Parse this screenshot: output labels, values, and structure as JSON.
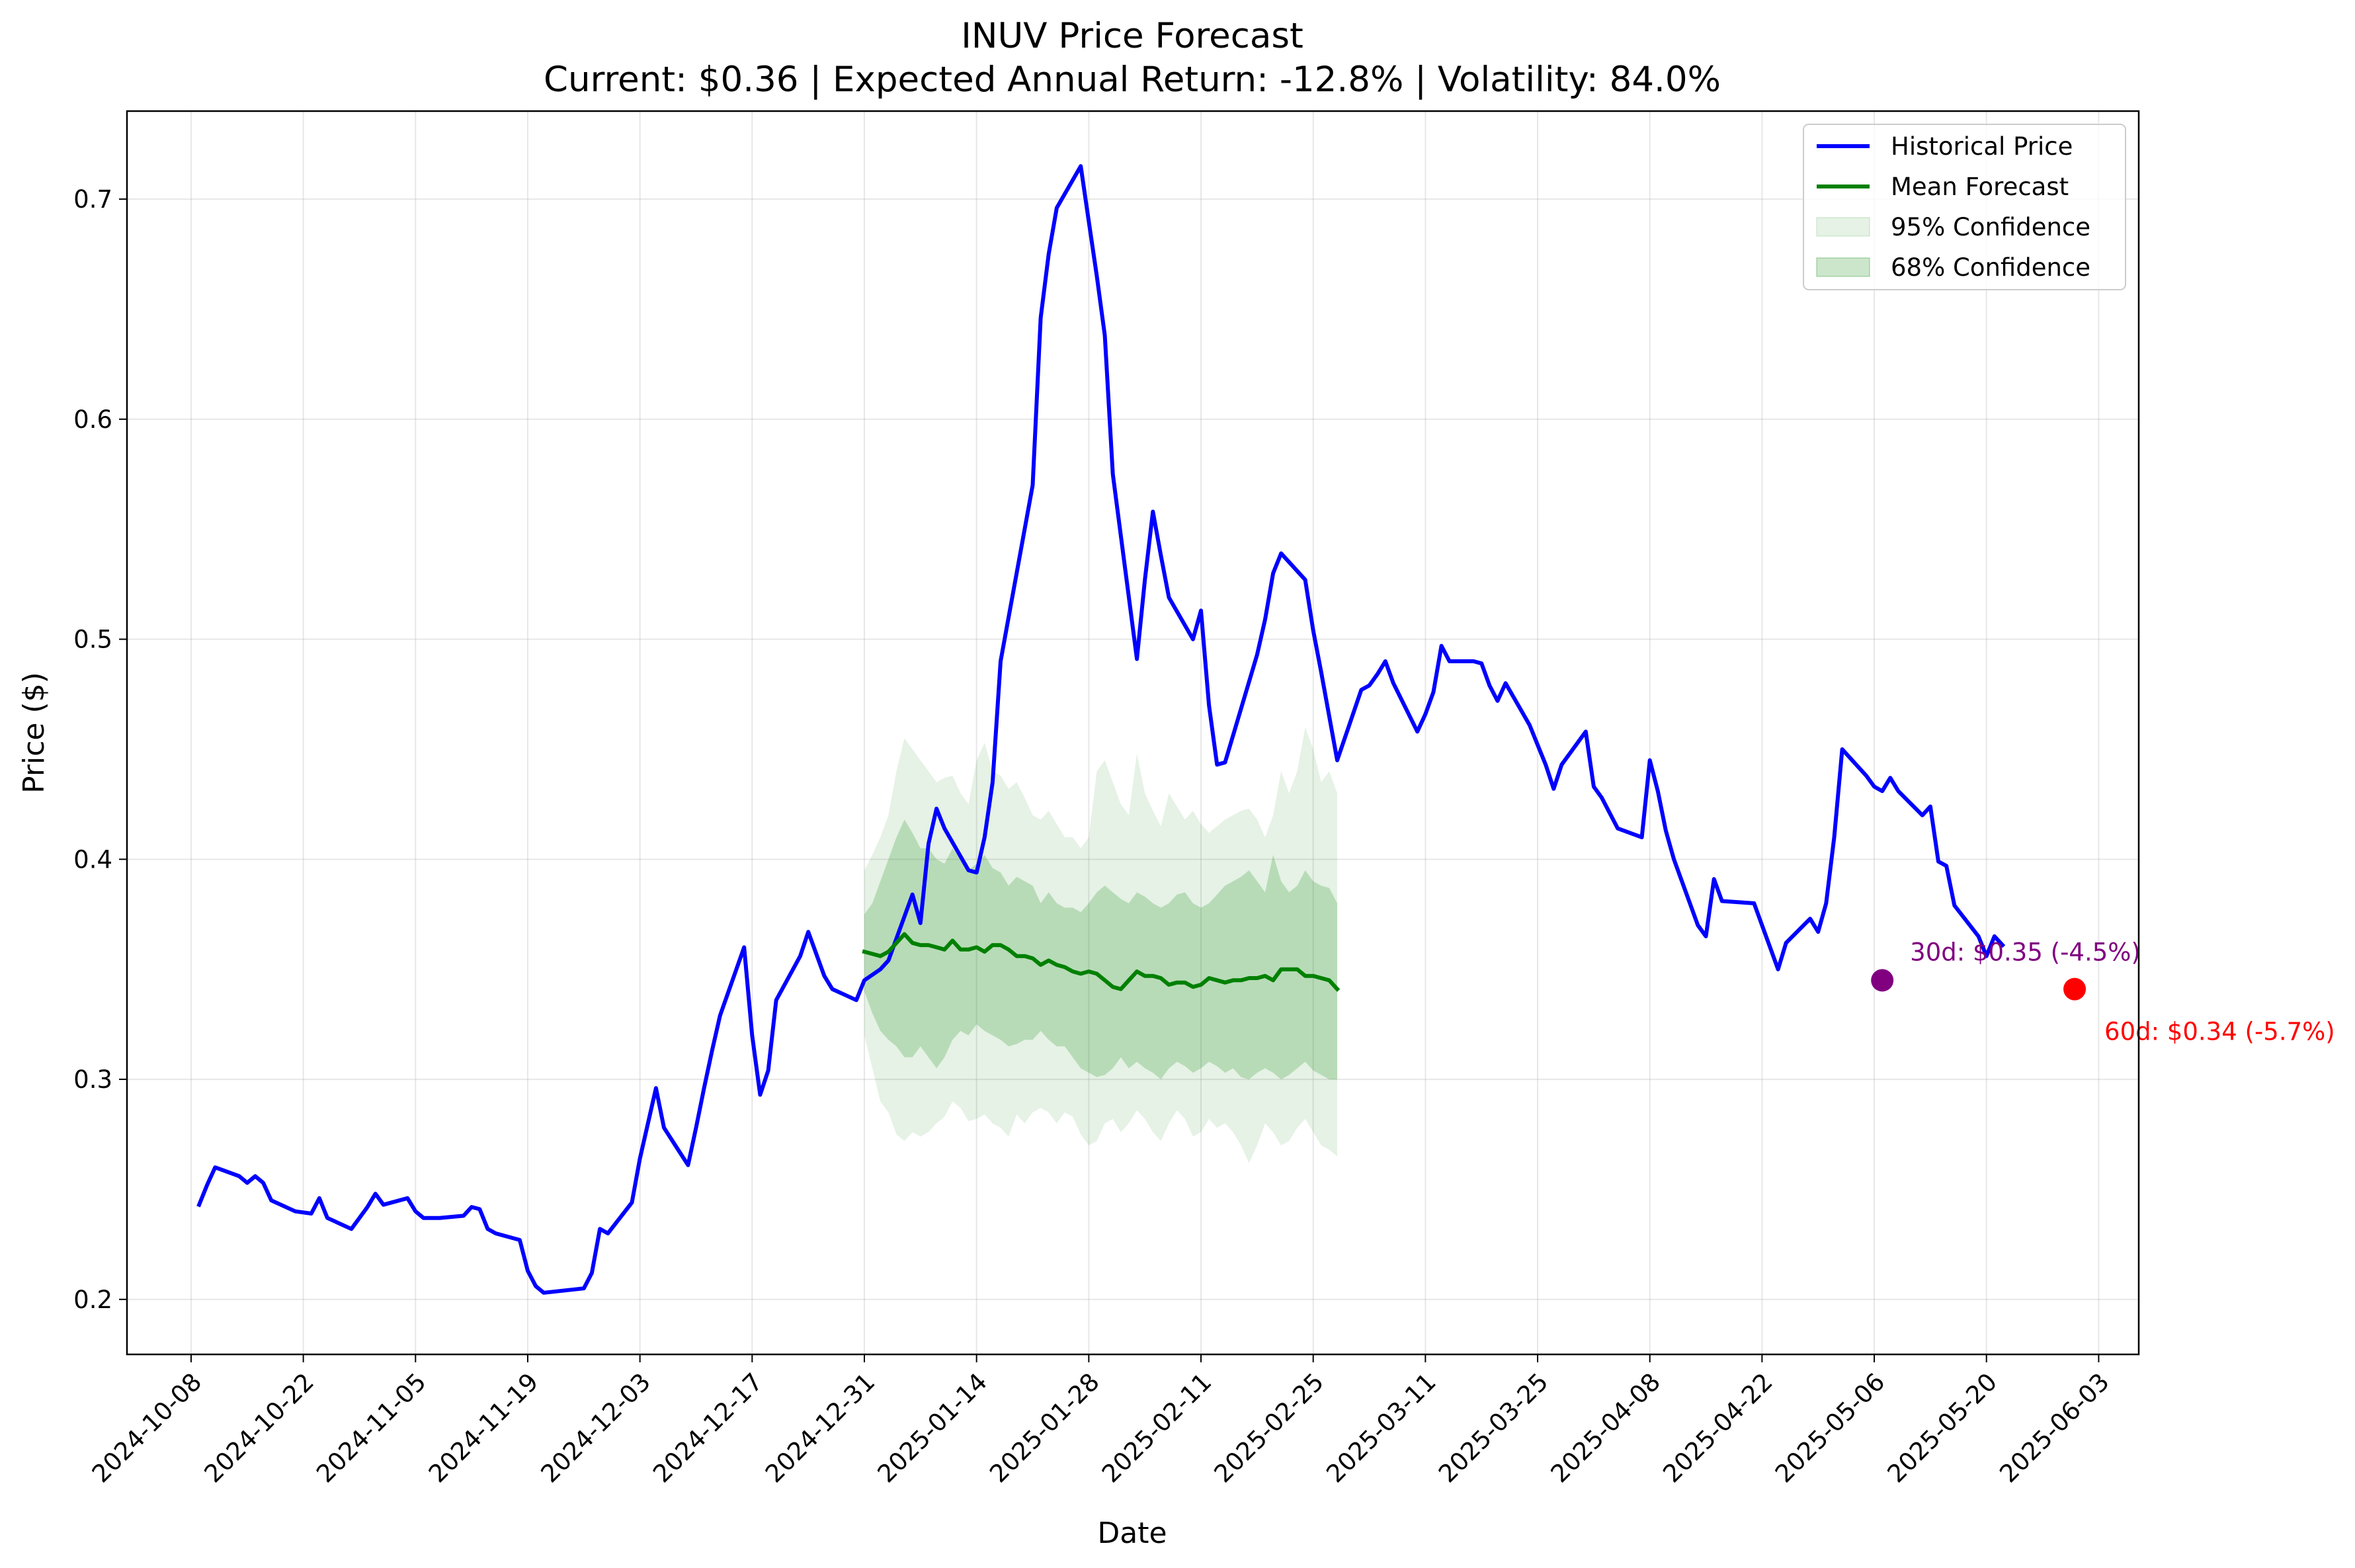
{
  "chart_data": {
    "type": "line",
    "title": "INUV Price Forecast",
    "subtitle": "Current: $0.36 | Expected Annual Return: -12.8% | Volatility: 84.0%",
    "xlabel": "Date",
    "ylabel": "Price ($)",
    "xlim": [
      "2024-09-30",
      "2025-06-08"
    ],
    "ylim": [
      0.175,
      0.74
    ],
    "grid": true,
    "legend_position": "top-right",
    "x_ticks": [
      "2024-10-08",
      "2024-10-22",
      "2024-11-05",
      "2024-11-19",
      "2024-12-03",
      "2024-12-17",
      "2024-12-31",
      "2025-01-14",
      "2025-01-28",
      "2025-02-11",
      "2025-02-25",
      "2025-03-11",
      "2025-03-25",
      "2025-04-08",
      "2025-04-22",
      "2025-05-06",
      "2025-05-20",
      "2025-06-03"
    ],
    "y_ticks": [
      "0.2",
      "0.3",
      "0.4",
      "0.5",
      "0.6",
      "0.7"
    ],
    "colors": {
      "historical": "#0000ff",
      "forecast": "#008000",
      "band": "#008000",
      "marker_30d": "#800080",
      "marker_60d": "#ff0000"
    },
    "series": [
      {
        "name": "Historical Price",
        "points": [
          [
            "2024-10-09",
            0.243
          ],
          [
            "2024-10-10",
            0.252
          ],
          [
            "2024-10-11",
            0.26
          ],
          [
            "2024-10-14",
            0.256
          ],
          [
            "2024-10-15",
            0.253
          ],
          [
            "2024-10-16",
            0.256
          ],
          [
            "2024-10-17",
            0.253
          ],
          [
            "2024-10-18",
            0.245
          ],
          [
            "2024-10-21",
            0.24
          ],
          [
            "2024-10-23",
            0.239
          ],
          [
            "2024-10-24",
            0.246
          ],
          [
            "2024-10-25",
            0.237
          ],
          [
            "2024-10-28",
            0.232
          ],
          [
            "2024-10-29",
            0.237
          ],
          [
            "2024-10-30",
            0.242
          ],
          [
            "2024-10-31",
            0.248
          ],
          [
            "2024-11-01",
            0.243
          ],
          [
            "2024-11-04",
            0.246
          ],
          [
            "2024-11-05",
            0.24
          ],
          [
            "2024-11-06",
            0.237
          ],
          [
            "2024-11-08",
            0.237
          ],
          [
            "2024-11-11",
            0.238
          ],
          [
            "2024-11-12",
            0.242
          ],
          [
            "2024-11-13",
            0.241
          ],
          [
            "2024-11-14",
            0.232
          ],
          [
            "2024-11-15",
            0.23
          ],
          [
            "2024-11-18",
            0.227
          ],
          [
            "2024-11-19",
            0.213
          ],
          [
            "2024-11-20",
            0.206
          ],
          [
            "2024-11-21",
            0.203
          ],
          [
            "2024-11-26",
            0.205
          ],
          [
            "2024-11-27",
            0.212
          ],
          [
            "2024-11-28",
            0.232
          ],
          [
            "2024-11-29",
            0.23
          ],
          [
            "2024-12-02",
            0.244
          ],
          [
            "2024-12-03",
            0.264
          ],
          [
            "2024-12-04",
            0.28
          ],
          [
            "2024-12-05",
            0.296
          ],
          [
            "2024-12-06",
            0.278
          ],
          [
            "2024-12-09",
            0.261
          ],
          [
            "2024-12-10",
            0.278
          ],
          [
            "2024-12-11",
            0.296
          ],
          [
            "2024-12-12",
            0.313
          ],
          [
            "2024-12-13",
            0.329
          ],
          [
            "2024-12-16",
            0.36
          ],
          [
            "2024-12-17",
            0.32
          ],
          [
            "2024-12-18",
            0.293
          ],
          [
            "2024-12-19",
            0.304
          ],
          [
            "2024-12-20",
            0.336
          ],
          [
            "2024-12-23",
            0.356
          ],
          [
            "2024-12-24",
            0.367
          ],
          [
            "2024-12-26",
            0.347
          ],
          [
            "2024-12-27",
            0.341
          ],
          [
            "2024-12-30",
            0.336
          ],
          [
            "2024-12-31",
            0.345
          ],
          [
            "2025-01-02",
            0.35
          ],
          [
            "2025-01-03",
            0.354
          ],
          [
            "2025-01-06",
            0.384
          ],
          [
            "2025-01-07",
            0.371
          ],
          [
            "2025-01-08",
            0.407
          ],
          [
            "2025-01-09",
            0.423
          ],
          [
            "2025-01-10",
            0.414
          ],
          [
            "2025-01-13",
            0.395
          ],
          [
            "2025-01-14",
            0.394
          ],
          [
            "2025-01-15",
            0.41
          ],
          [
            "2025-01-16",
            0.435
          ],
          [
            "2025-01-17",
            0.49
          ],
          [
            "2025-01-21",
            0.57
          ],
          [
            "2025-01-22",
            0.646
          ],
          [
            "2025-01-23",
            0.675
          ],
          [
            "2025-01-24",
            0.696
          ],
          [
            "2025-01-27",
            0.715
          ],
          [
            "2025-01-28",
            0.69
          ],
          [
            "2025-01-29",
            0.665
          ],
          [
            "2025-01-30",
            0.638
          ],
          [
            "2025-01-31",
            0.575
          ],
          [
            "2025-02-03",
            0.491
          ],
          [
            "2025-02-04",
            0.527
          ],
          [
            "2025-02-05",
            0.558
          ],
          [
            "2025-02-06",
            0.538
          ],
          [
            "2025-02-07",
            0.519
          ],
          [
            "2025-02-10",
            0.5
          ],
          [
            "2025-02-11",
            0.513
          ],
          [
            "2025-02-12",
            0.47
          ],
          [
            "2025-02-13",
            0.443
          ],
          [
            "2025-02-14",
            0.444
          ],
          [
            "2025-02-18",
            0.493
          ],
          [
            "2025-02-19",
            0.509
          ],
          [
            "2025-02-20",
            0.53
          ],
          [
            "2025-02-21",
            0.539
          ],
          [
            "2025-02-24",
            0.527
          ],
          [
            "2025-02-25",
            0.504
          ],
          [
            "2025-02-26",
            0.485
          ],
          [
            "2025-02-27",
            0.465
          ],
          [
            "2025-02-28",
            0.445
          ],
          [
            "2025-03-03",
            0.477
          ],
          [
            "2025-03-04",
            0.479
          ],
          [
            "2025-03-05",
            0.484
          ],
          [
            "2025-03-06",
            0.49
          ],
          [
            "2025-03-07",
            0.48
          ],
          [
            "2025-03-10",
            0.458
          ],
          [
            "2025-03-11",
            0.466
          ],
          [
            "2025-03-12",
            0.476
          ],
          [
            "2025-03-13",
            0.497
          ],
          [
            "2025-03-14",
            0.49
          ],
          [
            "2025-03-17",
            0.49
          ],
          [
            "2025-03-18",
            0.489
          ],
          [
            "2025-03-19",
            0.479
          ],
          [
            "2025-03-20",
            0.472
          ],
          [
            "2025-03-21",
            0.48
          ],
          [
            "2025-03-24",
            0.461
          ],
          [
            "2025-03-25",
            0.452
          ],
          [
            "2025-03-26",
            0.443
          ],
          [
            "2025-03-27",
            0.432
          ],
          [
            "2025-03-28",
            0.443
          ],
          [
            "2025-03-31",
            0.458
          ],
          [
            "2025-04-01",
            0.433
          ],
          [
            "2025-04-02",
            0.428
          ],
          [
            "2025-04-03",
            0.421
          ],
          [
            "2025-04-04",
            0.414
          ],
          [
            "2025-04-07",
            0.41
          ],
          [
            "2025-04-08",
            0.445
          ],
          [
            "2025-04-09",
            0.431
          ],
          [
            "2025-04-10",
            0.413
          ],
          [
            "2025-04-11",
            0.4
          ],
          [
            "2025-04-14",
            0.37
          ],
          [
            "2025-04-15",
            0.365
          ],
          [
            "2025-04-16",
            0.391
          ],
          [
            "2025-04-17",
            0.381
          ],
          [
            "2025-04-21",
            0.38
          ],
          [
            "2025-04-22",
            0.37
          ],
          [
            "2025-04-23",
            0.36
          ],
          [
            "2025-04-24",
            0.35
          ],
          [
            "2025-04-25",
            0.362
          ],
          [
            "2025-04-28",
            0.373
          ],
          [
            "2025-04-29",
            0.367
          ],
          [
            "2025-04-30",
            0.38
          ],
          [
            "2025-05-01",
            0.41
          ],
          [
            "2025-05-02",
            0.45
          ],
          [
            "2025-05-05",
            0.438
          ],
          [
            "2025-05-06",
            0.433
          ],
          [
            "2025-05-07",
            0.431
          ],
          [
            "2025-05-08",
            0.437
          ],
          [
            "2025-05-09",
            0.431
          ],
          [
            "2025-05-12",
            0.42
          ],
          [
            "2025-05-13",
            0.424
          ],
          [
            "2025-05-14",
            0.399
          ],
          [
            "2025-05-15",
            0.397
          ],
          [
            "2025-05-16",
            0.379
          ],
          [
            "2025-05-19",
            0.365
          ],
          [
            "2025-05-20",
            0.356
          ],
          [
            "2025-05-21",
            0.365
          ],
          [
            "2025-05-22",
            0.361
          ]
        ]
      },
      {
        "name": "Mean Forecast",
        "start": "2024-12-31",
        "step_days": 1,
        "values": [
          0.358,
          0.357,
          0.356,
          0.358,
          0.362,
          0.366,
          0.362,
          0.361,
          0.361,
          0.36,
          0.359,
          0.363,
          0.359,
          0.359,
          0.36,
          0.358,
          0.361,
          0.361,
          0.359,
          0.356,
          0.356,
          0.355,
          0.352,
          0.354,
          0.352,
          0.351,
          0.349,
          0.348,
          0.349,
          0.348,
          0.345,
          0.342,
          0.341,
          0.345,
          0.349,
          0.347,
          0.347,
          0.346,
          0.343,
          0.344,
          0.344,
          0.342,
          0.343,
          0.346,
          0.345,
          0.344,
          0.345,
          0.345,
          0.346,
          0.346,
          0.347,
          0.345,
          0.35,
          0.35,
          0.35,
          0.347,
          0.347,
          0.346,
          0.345,
          0.341
        ]
      }
    ],
    "bands": [
      {
        "name": "95% Confidence",
        "opacity": 0.1,
        "lower": [
          0.32,
          0.305,
          0.29,
          0.285,
          0.275,
          0.272,
          0.276,
          0.274,
          0.276,
          0.28,
          0.283,
          0.29,
          0.287,
          0.281,
          0.282,
          0.284,
          0.28,
          0.278,
          0.274,
          0.284,
          0.28,
          0.285,
          0.287,
          0.285,
          0.28,
          0.285,
          0.283,
          0.275,
          0.27,
          0.272,
          0.28,
          0.282,
          0.276,
          0.28,
          0.286,
          0.282,
          0.276,
          0.272,
          0.28,
          0.286,
          0.282,
          0.274,
          0.276,
          0.282,
          0.278,
          0.28,
          0.276,
          0.27,
          0.262,
          0.27,
          0.28,
          0.276,
          0.27,
          0.272,
          0.278,
          0.282,
          0.276,
          0.27,
          0.268,
          0.265
        ],
        "upper": [
          0.395,
          0.402,
          0.41,
          0.42,
          0.44,
          0.455,
          0.45,
          0.445,
          0.44,
          0.435,
          0.437,
          0.438,
          0.43,
          0.425,
          0.445,
          0.453,
          0.44,
          0.438,
          0.432,
          0.435,
          0.428,
          0.42,
          0.418,
          0.422,
          0.416,
          0.41,
          0.41,
          0.405,
          0.41,
          0.44,
          0.445,
          0.435,
          0.425,
          0.42,
          0.448,
          0.43,
          0.422,
          0.415,
          0.43,
          0.424,
          0.418,
          0.422,
          0.416,
          0.412,
          0.415,
          0.418,
          0.42,
          0.422,
          0.423,
          0.418,
          0.41,
          0.42,
          0.44,
          0.43,
          0.44,
          0.46,
          0.45,
          0.435,
          0.44,
          0.43
        ]
      },
      {
        "name": "68% Confidence",
        "opacity": 0.2,
        "lower": [
          0.34,
          0.33,
          0.322,
          0.318,
          0.315,
          0.31,
          0.31,
          0.315,
          0.31,
          0.305,
          0.31,
          0.318,
          0.322,
          0.32,
          0.325,
          0.322,
          0.32,
          0.318,
          0.315,
          0.316,
          0.318,
          0.318,
          0.322,
          0.318,
          0.315,
          0.315,
          0.31,
          0.305,
          0.303,
          0.301,
          0.302,
          0.305,
          0.31,
          0.305,
          0.308,
          0.305,
          0.303,
          0.3,
          0.305,
          0.308,
          0.306,
          0.303,
          0.305,
          0.308,
          0.306,
          0.303,
          0.305,
          0.301,
          0.3,
          0.303,
          0.305,
          0.303,
          0.3,
          0.302,
          0.305,
          0.308,
          0.304,
          0.302,
          0.3,
          0.3
        ],
        "upper": [
          0.375,
          0.38,
          0.39,
          0.4,
          0.41,
          0.418,
          0.412,
          0.405,
          0.405,
          0.4,
          0.398,
          0.405,
          0.4,
          0.395,
          0.398,
          0.402,
          0.396,
          0.394,
          0.388,
          0.392,
          0.39,
          0.388,
          0.38,
          0.385,
          0.38,
          0.378,
          0.378,
          0.376,
          0.38,
          0.385,
          0.388,
          0.385,
          0.382,
          0.38,
          0.385,
          0.383,
          0.38,
          0.378,
          0.38,
          0.384,
          0.385,
          0.38,
          0.378,
          0.38,
          0.384,
          0.388,
          0.39,
          0.392,
          0.395,
          0.39,
          0.385,
          0.402,
          0.39,
          0.385,
          0.388,
          0.395,
          0.39,
          0.388,
          0.387,
          0.38
        ]
      }
    ],
    "markers": [
      {
        "date": "2025-05-07",
        "value": 0.345,
        "label": "30d: $0.35 (-4.5%)",
        "color": "#800080"
      },
      {
        "date": "2025-05-31",
        "value": 0.341,
        "label": "60d: $0.34 (-5.7%)",
        "color": "#ff0000"
      }
    ],
    "legend": [
      {
        "label": "Historical Price",
        "kind": "line",
        "color": "#0000ff"
      },
      {
        "label": "Mean Forecast",
        "kind": "line",
        "color": "#008000"
      },
      {
        "label": "95% Confidence",
        "kind": "patch",
        "color": "#008000",
        "opacity": 0.1
      },
      {
        "label": "68% Confidence",
        "kind": "patch",
        "color": "#008000",
        "opacity": 0.2
      }
    ]
  }
}
